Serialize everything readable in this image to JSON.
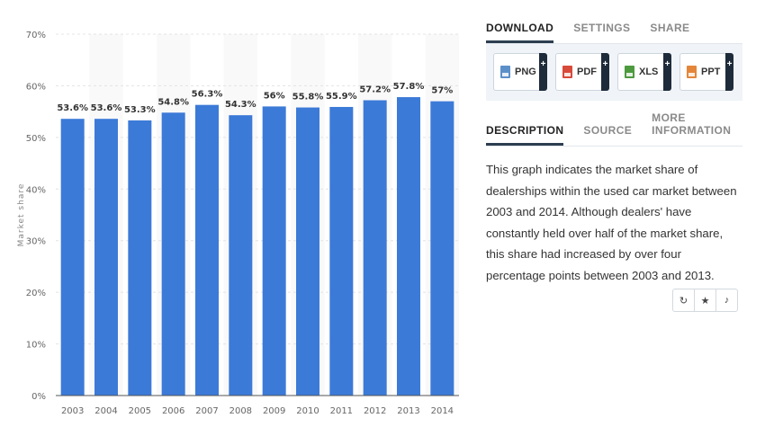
{
  "chart_data": {
    "type": "bar",
    "categories": [
      "2003",
      "2004",
      "2005",
      "2006",
      "2007",
      "2008",
      "2009",
      "2010",
      "2011",
      "2012",
      "2013",
      "2014"
    ],
    "values": [
      53.6,
      53.6,
      53.3,
      54.8,
      56.3,
      54.3,
      56,
      55.8,
      55.9,
      57.2,
      57.8,
      57
    ],
    "data_labels": [
      "53.6%",
      "53.6%",
      "53.3%",
      "54.8%",
      "56.3%",
      "54.3%",
      "56%",
      "55.8%",
      "55.9%",
      "57.2%",
      "57.8%",
      "57%"
    ],
    "yticks": [
      "0%",
      "10%",
      "20%",
      "30%",
      "40%",
      "50%",
      "60%",
      "70%"
    ],
    "ylabel": "Market share",
    "ylim": [
      0,
      70
    ],
    "bar_color": "#3c7ad8",
    "grid": true
  },
  "download_tabs": [
    "DOWNLOAD",
    "SETTINGS",
    "SHARE"
  ],
  "download_buttons": [
    {
      "label": "PNG",
      "color": "#5b8fc9"
    },
    {
      "label": "PDF",
      "color": "#d84a3a"
    },
    {
      "label": "XLS",
      "color": "#4e9a3f"
    },
    {
      "label": "PPT",
      "color": "#e4863a"
    }
  ],
  "plus_glyph": "+",
  "info_tabs": [
    "DESCRIPTION",
    "SOURCE",
    "MORE INFORMATION"
  ],
  "description": "This graph indicates the market share of dealerships within the used car market between 2003 and 2014. Although dealers' have constantly held over half of the market share, this share had increased by over four percentage points between 2003 and 2013.",
  "action_icons": [
    {
      "name": "history-icon",
      "glyph": "↻"
    },
    {
      "name": "star-icon",
      "glyph": "★"
    },
    {
      "name": "bell-icon",
      "glyph": "♪"
    }
  ]
}
